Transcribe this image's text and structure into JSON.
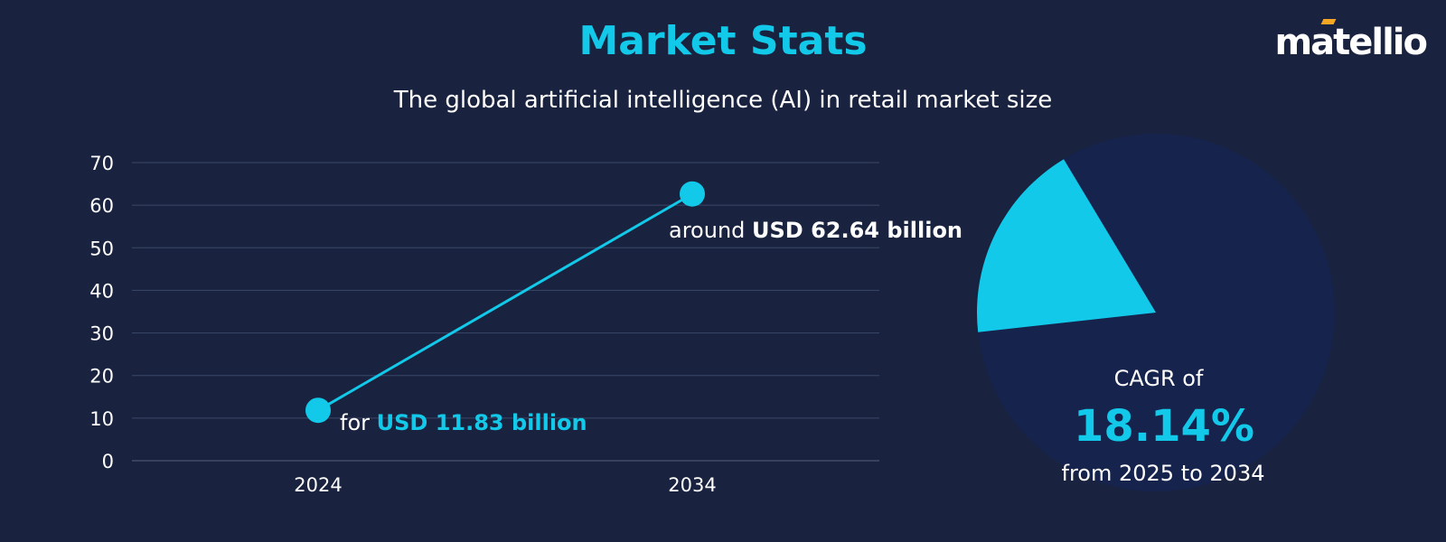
{
  "header": {
    "title": "Market Stats",
    "subtitle": "The global artificial intelligence (AI) in retail market size"
  },
  "brand": {
    "logo_text": "matellio",
    "accent_color": "#f5a623"
  },
  "colors": {
    "background": "#19223f",
    "accent": "#12c9e9",
    "pie_base": "#16234d",
    "grid": "#3b4868"
  },
  "chart_data": [
    {
      "type": "line",
      "title": "",
      "xlabel": "",
      "ylabel": "",
      "x": [
        "2024",
        "2034"
      ],
      "series": [
        {
          "values": [
            11.83,
            62.64
          ]
        }
      ],
      "ylim": [
        0,
        70
      ],
      "yticks": [
        0,
        10,
        20,
        30,
        40,
        50,
        60,
        70
      ],
      "grid": true,
      "annotations": [
        {
          "prefix": "for",
          "value_text": "USD 11.83 billion"
        },
        {
          "prefix": "around",
          "value_text": "USD 62.64 billion"
        }
      ]
    },
    {
      "type": "pie",
      "slices": [
        {
          "value": 18.14
        },
        {
          "value": 81.86
        }
      ],
      "annotation": {
        "line1": "CAGR of",
        "value": "18.14%",
        "line2": "from 2025 to 2034"
      }
    }
  ]
}
